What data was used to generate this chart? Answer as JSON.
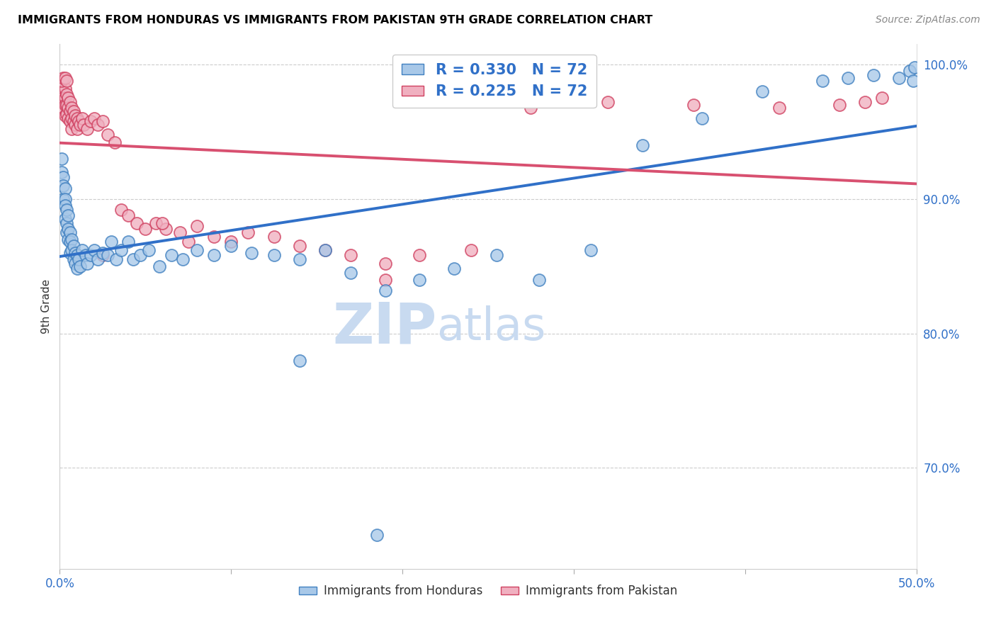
{
  "title": "IMMIGRANTS FROM HONDURAS VS IMMIGRANTS FROM PAKISTAN 9TH GRADE CORRELATION CHART",
  "source": "Source: ZipAtlas.com",
  "ylabel_label": "9th Grade",
  "xlim": [
    0.0,
    0.5
  ],
  "ylim": [
    0.625,
    1.015
  ],
  "ytick_labels": [
    "100.0%",
    "90.0%",
    "80.0%",
    "70.0%"
  ],
  "ytick_positions": [
    1.0,
    0.9,
    0.8,
    0.7
  ],
  "xtick_positions": [
    0.0,
    0.1,
    0.2,
    0.3,
    0.4,
    0.5
  ],
  "xtick_labels": [
    "0.0%",
    "",
    "",
    "",
    "",
    "50.0%"
  ],
  "r_honduras": 0.33,
  "n_honduras": 72,
  "r_pakistan": 0.225,
  "n_pakistan": 72,
  "legend_labels_bottom": [
    "Immigrants from Honduras",
    "Immigrants from Pakistan"
  ],
  "color_honduras_face": "#a8c8e8",
  "color_honduras_edge": "#4080c0",
  "color_pakistan_face": "#f0b0c0",
  "color_pakistan_edge": "#d04060",
  "line_color_honduras": "#3070c8",
  "line_color_pakistan": "#d85070",
  "watermark_zip": "ZIP",
  "watermark_atlas": "atlas",
  "watermark_color": "#c8daf0",
  "grid_color": "#cccccc",
  "honduras_x": [
    0.001,
    0.001,
    0.002,
    0.002,
    0.002,
    0.003,
    0.003,
    0.003,
    0.003,
    0.004,
    0.004,
    0.004,
    0.005,
    0.005,
    0.005,
    0.006,
    0.006,
    0.006,
    0.007,
    0.007,
    0.008,
    0.008,
    0.009,
    0.009,
    0.01,
    0.01,
    0.011,
    0.012,
    0.013,
    0.015,
    0.016,
    0.018,
    0.02,
    0.022,
    0.025,
    0.028,
    0.03,
    0.033,
    0.036,
    0.04,
    0.043,
    0.047,
    0.052,
    0.058,
    0.065,
    0.072,
    0.08,
    0.09,
    0.1,
    0.112,
    0.125,
    0.14,
    0.155,
    0.17,
    0.19,
    0.21,
    0.23,
    0.255,
    0.28,
    0.31,
    0.34,
    0.375,
    0.41,
    0.445,
    0.46,
    0.475,
    0.49,
    0.496,
    0.498,
    0.499,
    0.14,
    0.185
  ],
  "honduras_y": [
    0.93,
    0.92,
    0.916,
    0.91,
    0.9,
    0.908,
    0.9,
    0.895,
    0.885,
    0.892,
    0.882,
    0.875,
    0.888,
    0.878,
    0.87,
    0.875,
    0.868,
    0.86,
    0.87,
    0.862,
    0.865,
    0.855,
    0.86,
    0.852,
    0.858,
    0.848,
    0.855,
    0.85,
    0.862,
    0.858,
    0.852,
    0.858,
    0.862,
    0.855,
    0.86,
    0.858,
    0.868,
    0.855,
    0.862,
    0.868,
    0.855,
    0.858,
    0.862,
    0.85,
    0.858,
    0.855,
    0.862,
    0.858,
    0.865,
    0.86,
    0.858,
    0.855,
    0.862,
    0.845,
    0.832,
    0.84,
    0.848,
    0.858,
    0.84,
    0.862,
    0.94,
    0.96,
    0.98,
    0.988,
    0.99,
    0.992,
    0.99,
    0.995,
    0.988,
    0.998,
    0.78,
    0.65
  ],
  "pakistan_x": [
    0.001,
    0.001,
    0.001,
    0.002,
    0.002,
    0.002,
    0.003,
    0.003,
    0.003,
    0.003,
    0.004,
    0.004,
    0.004,
    0.005,
    0.005,
    0.005,
    0.006,
    0.006,
    0.006,
    0.007,
    0.007,
    0.007,
    0.008,
    0.008,
    0.009,
    0.009,
    0.01,
    0.01,
    0.011,
    0.012,
    0.013,
    0.014,
    0.016,
    0.018,
    0.02,
    0.022,
    0.025,
    0.028,
    0.032,
    0.036,
    0.04,
    0.045,
    0.05,
    0.056,
    0.062,
    0.07,
    0.08,
    0.09,
    0.1,
    0.11,
    0.125,
    0.14,
    0.155,
    0.17,
    0.19,
    0.21,
    0.24,
    0.275,
    0.32,
    0.37,
    0.42,
    0.455,
    0.47,
    0.48,
    0.025,
    0.06,
    0.075,
    0.19,
    0.001,
    0.002,
    0.003,
    0.004
  ],
  "pakistan_y": [
    0.978,
    0.972,
    0.965,
    0.98,
    0.975,
    0.968,
    0.982,
    0.975,
    0.97,
    0.962,
    0.978,
    0.97,
    0.963,
    0.975,
    0.968,
    0.96,
    0.972,
    0.965,
    0.958,
    0.968,
    0.96,
    0.952,
    0.965,
    0.958,
    0.962,
    0.955,
    0.96,
    0.952,
    0.958,
    0.955,
    0.96,
    0.955,
    0.952,
    0.958,
    0.96,
    0.955,
    0.958,
    0.948,
    0.942,
    0.892,
    0.888,
    0.882,
    0.878,
    0.882,
    0.878,
    0.875,
    0.88,
    0.872,
    0.868,
    0.875,
    0.872,
    0.865,
    0.862,
    0.858,
    0.852,
    0.858,
    0.862,
    0.968,
    0.972,
    0.97,
    0.968,
    0.97,
    0.972,
    0.975,
    0.858,
    0.882,
    0.868,
    0.84,
    0.988,
    0.99,
    0.99,
    0.988
  ]
}
